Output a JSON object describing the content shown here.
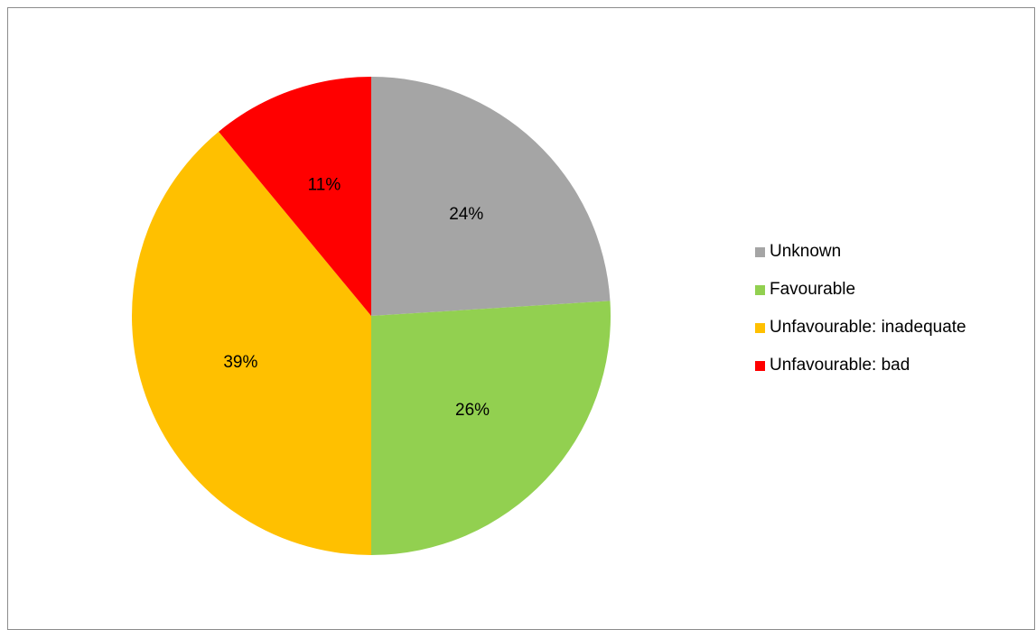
{
  "chart_data": {
    "type": "pie",
    "title": "",
    "legend_position": "right",
    "slices": [
      {
        "name": "Unknown",
        "value": 24,
        "label": "24%",
        "color": "#a5a5a5"
      },
      {
        "name": "Favourable",
        "value": 26,
        "label": "26%",
        "color": "#92d050"
      },
      {
        "name": "Unfavourable: inadequate",
        "value": 39,
        "label": "39%",
        "color": "#ffc000"
      },
      {
        "name": "Unfavourable: bad",
        "value": 11,
        "label": "11%",
        "color": "#ff0000"
      }
    ]
  }
}
